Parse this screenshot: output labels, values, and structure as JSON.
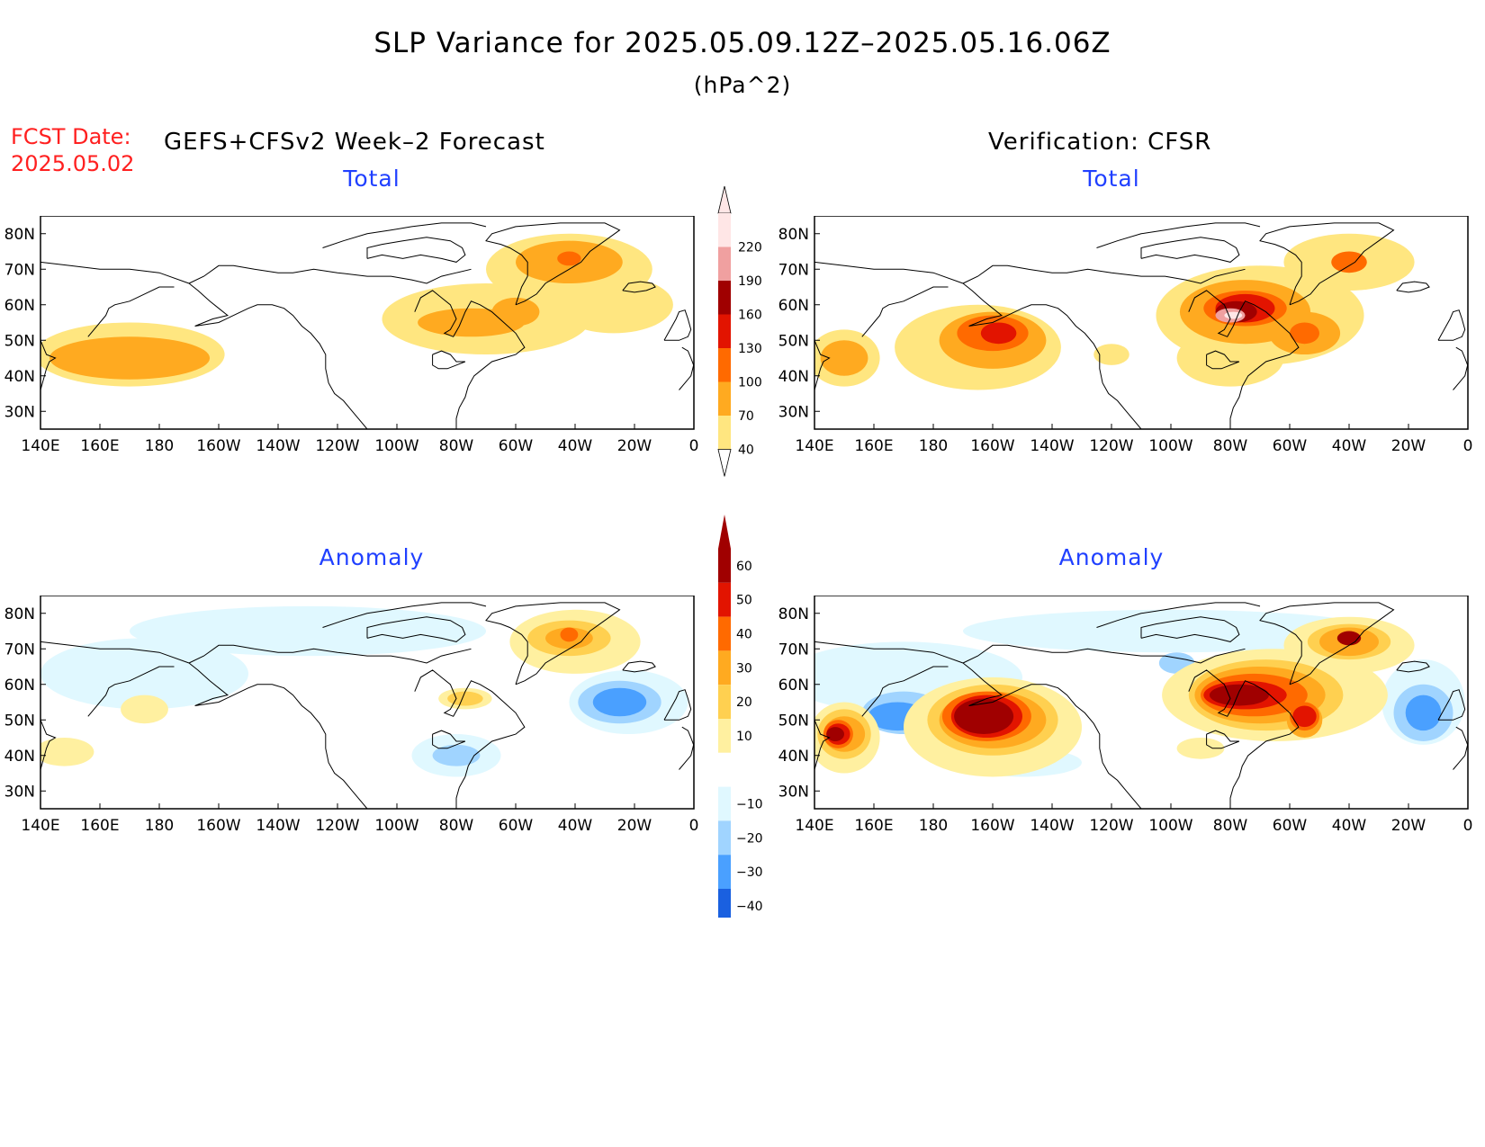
{
  "header": {
    "title": "SLP Variance for 2025.05.09.12Z–2025.05.16.06Z",
    "units": "(hPa^2)",
    "fcst_label": "FCST Date:",
    "fcst_date": "2025.05.02",
    "forecast_heading": "GEFS+CFSv2 Week–2 Forecast",
    "verification_heading": "Verification: CFSR"
  },
  "panels": {
    "fcst_total": {
      "title": "Total"
    },
    "verif_total": {
      "title": "Total"
    },
    "fcst_anom": {
      "title": "Anomaly"
    },
    "verif_anom": {
      "title": "Anomaly"
    }
  },
  "axes": {
    "lon_labels": [
      "140E",
      "160E",
      "180",
      "160W",
      "140W",
      "120W",
      "100W",
      "80W",
      "60W",
      "40W",
      "20W",
      "0"
    ],
    "lat_labels": [
      "30N",
      "40N",
      "50N",
      "60N",
      "70N",
      "80N"
    ]
  },
  "colorbars": {
    "total": {
      "levels": [
        "40",
        "70",
        "100",
        "130",
        "160",
        "190",
        "220"
      ],
      "colors": [
        "#ffe680",
        "#ffaa20",
        "#ff6a00",
        "#e21400",
        "#a00000",
        "#f0a0a0",
        "#ffe6e6"
      ]
    },
    "anomaly": {
      "levels": [
        "60",
        "50",
        "40",
        "30",
        "20",
        "10",
        "−10",
        "−20",
        "−30",
        "−40"
      ],
      "colors": [
        "#a00000",
        "#e21400",
        "#ff6a00",
        "#ffaa20",
        "#ffd050",
        "#fff0a0",
        "#ffffff",
        "#e0f8ff",
        "#a0d4ff",
        "#4aa0ff",
        "#1a60e0"
      ]
    }
  },
  "colors": {
    "c40": "#ffe680",
    "c70": "#ffaa20",
    "c100": "#ff6a00",
    "c130": "#e21400",
    "c160": "#a00000",
    "c190": "#f0a0a0",
    "c220": "#ffe6e6",
    "a10": "#fff0a0",
    "a20": "#ffd050",
    "a30": "#ffaa20",
    "a40": "#ff6a00",
    "a50": "#e21400",
    "a60": "#a00000",
    "n10": "#e0f8ff",
    "n20": "#a0d4ff",
    "n30": "#4aa0ff",
    "n40": "#1a60e0"
  }
}
